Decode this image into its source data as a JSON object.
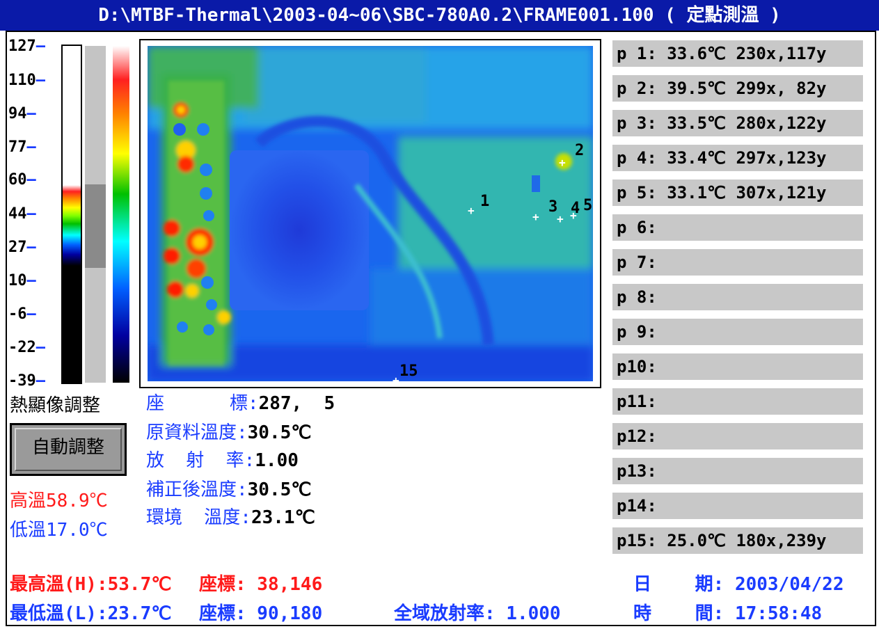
{
  "title": "D:\\MTBF-Thermal\\2003-04~06\\SBC-780A0.2\\FRAME001.100 ( 定點測溫 )",
  "scale": {
    "ticks": [
      "127",
      "110",
      "94",
      "77",
      "60",
      "44",
      "27",
      "10",
      "-6",
      "-22",
      "-39"
    ],
    "dash": "—"
  },
  "adjust": {
    "label": "熱顯像調整",
    "auto_button": "自動調整",
    "high_label": "高溫58.9℃",
    "low_label": "低溫17.0℃"
  },
  "readout": {
    "coord_label": "座      標:",
    "coord_value": "287,  5",
    "raw_label": "原資料溫度:",
    "raw_value": "30.5℃",
    "emis_label": "放  射  率:",
    "emis_value": "1.00",
    "corrected_label": "補正後溫度:",
    "corrected_value": "30.5℃",
    "ambient_label": "環境  溫度:",
    "ambient_value": "23.1℃"
  },
  "points": [
    "p 1: 33.6℃ 230x,117y",
    "p 2: 39.5℃ 299x, 82y",
    "p 3: 33.5℃ 280x,122y",
    "p 4: 33.4℃ 297x,123y",
    "p 5: 33.1℃ 307x,121y",
    "p 6:",
    "p 7:",
    "p 8:",
    "p 9:",
    "p10:",
    "p11:",
    "p12:",
    "p13:",
    "p14:",
    "p15: 25.0℃ 180x,239y"
  ],
  "markers": [
    "1",
    "2",
    "3",
    "4",
    "5",
    "15"
  ],
  "footer": {
    "max_temp": "最高溫(H):53.7℃",
    "max_coord": "座標: 38,146",
    "min_temp": "最低溫(L):23.7℃",
    "min_coord": "座標: 90,180",
    "global_emis": "全域放射率: 1.000",
    "date_label": "日    期:",
    "date_value": "2003/04/22",
    "time_label": "時    間:",
    "time_value": "17:58:48"
  },
  "colors": {
    "titlebar": "#0a1aa8",
    "accent_blue": "#1a3cff",
    "accent_red": "#ff1a1a",
    "panel_gray": "#c8c8c8"
  }
}
